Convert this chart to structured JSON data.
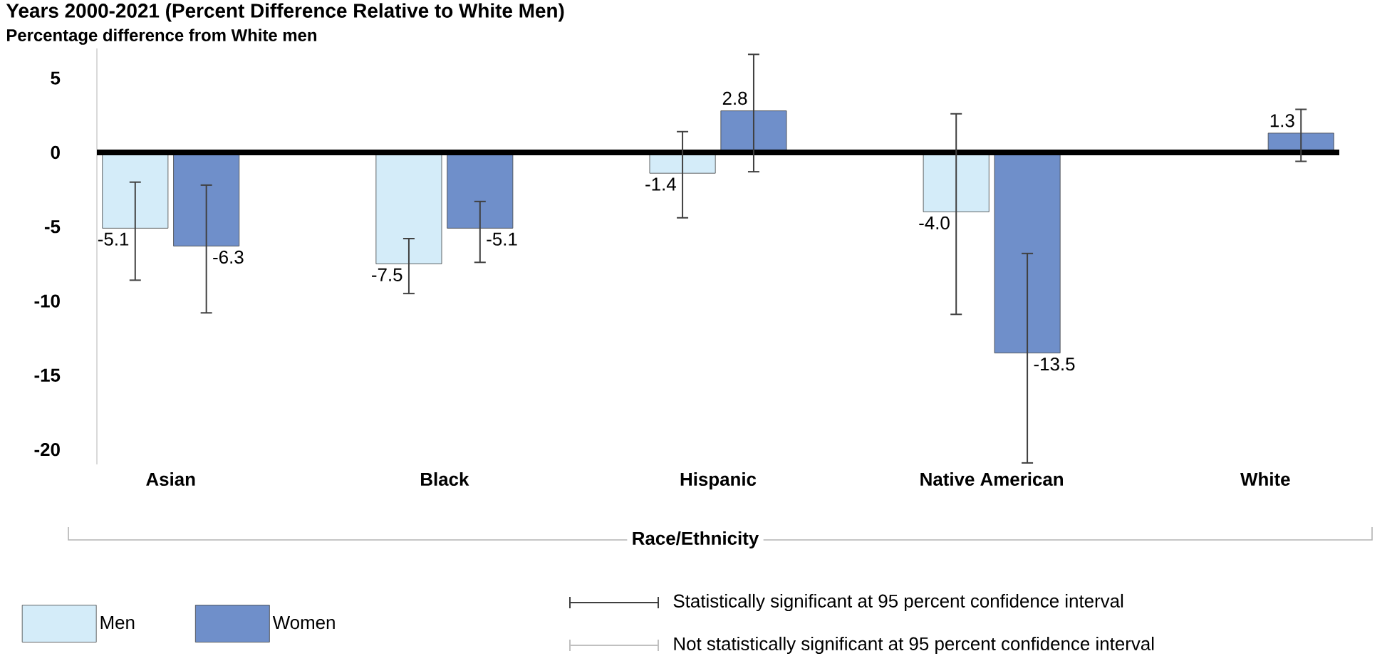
{
  "chart_data": {
    "type": "bar",
    "title": "Years 2000-2021 (Percent Difference Relative to White Men)",
    "subtitle": "Percentage difference from White men",
    "xlabel": "Race/Ethnicity",
    "categories": [
      "Asian",
      "Black",
      "Hispanic",
      "Native American",
      "White"
    ],
    "series": [
      {
        "name": "Men",
        "color": "#d4ecf9",
        "values": [
          -5.1,
          -7.5,
          -1.4,
          -4.0,
          null
        ],
        "value_labels": [
          "-5.1",
          "-7.5",
          "-1.4",
          "-4.0",
          null
        ],
        "errors": [
          [
            -8.6,
            -2.0
          ],
          [
            -9.5,
            -5.8
          ],
          [
            -4.4,
            1.4
          ],
          [
            -10.9,
            2.6
          ],
          null
        ]
      },
      {
        "name": "Women",
        "color": "#6f8fca",
        "values": [
          -6.3,
          -5.1,
          2.8,
          -13.5,
          1.3
        ],
        "value_labels": [
          "-6.3",
          "-5.1",
          "2.8",
          "-13.5",
          "1.3"
        ],
        "errors": [
          [
            -10.8,
            -2.2
          ],
          [
            -7.4,
            -3.3
          ],
          [
            -1.3,
            6.6
          ],
          [
            -20.9,
            -6.8
          ],
          [
            -0.6,
            2.9
          ]
        ]
      }
    ],
    "ref_lines": [
      {
        "axis": "y",
        "value": 0,
        "color": "#000000"
      }
    ],
    "ylim": [
      -21,
      7
    ],
    "yticks": [
      5,
      0,
      -5,
      -10,
      -15,
      -20
    ],
    "grid": false,
    "legend": "bottom left",
    "annotations": [
      "Statistically significant at 95 percent confidence interval",
      "Not statistically significant at 95 percent confidence interval"
    ]
  }
}
